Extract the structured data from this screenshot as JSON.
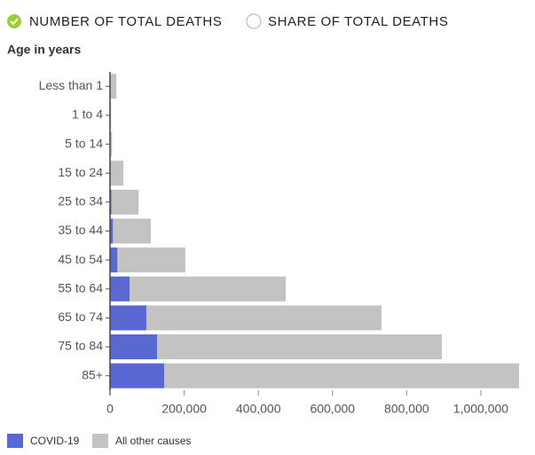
{
  "toggles": [
    "NUMBER OF TOTAL DEATHS",
    "SHARE OF TOTAL DEATHS"
  ],
  "chart_data": {
    "type": "stacked-barh",
    "y_label": "Age in years",
    "categories": [
      "Less than 1",
      "1 to 4",
      "5 to 14",
      "15 to 24",
      "25 to 34",
      "35 to 44",
      "45 to 54",
      "55 to 64",
      "65 to 74",
      "75 to 84",
      "85+"
    ],
    "series": [
      {
        "name": "COVID-19",
        "color": "#5a68d4",
        "values": [
          100,
          100,
          300,
          1000,
          4000,
          8000,
          20000,
          53000,
          98000,
          127000,
          146000
        ]
      },
      {
        "name": "All other causes",
        "color": "#c3c3c3",
        "values": [
          17000,
          3000,
          5000,
          35000,
          73000,
          102000,
          183000,
          421000,
          634000,
          768000,
          957000
        ]
      }
    ],
    "xlim": [
      0,
      1103000
    ],
    "xticks": [
      0,
      {
        "value": 200000,
        "label": "200,000"
      },
      {
        "value": 400000,
        "label": "400,000"
      },
      {
        "value": 600000,
        "label": "600,000"
      },
      {
        "value": 800000,
        "label": "800,000"
      },
      {
        "value": 1000000,
        "label": "1,000,000"
      }
    ]
  }
}
